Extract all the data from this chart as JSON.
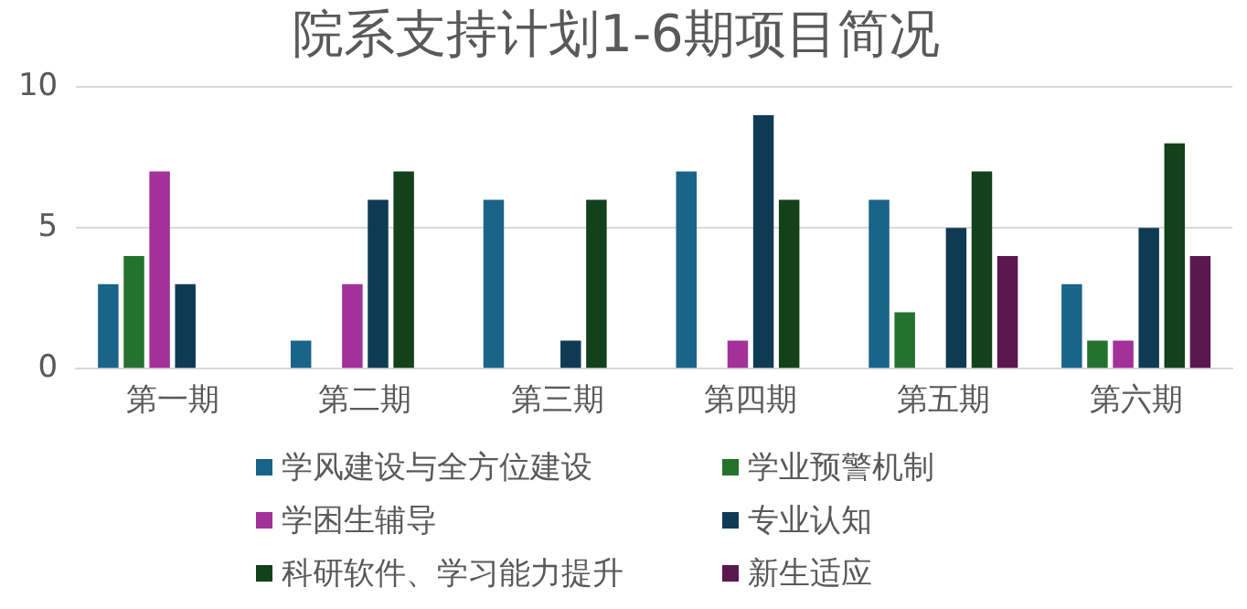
{
  "chart_data": {
    "type": "bar",
    "title": "院系支持计划1-6期项目简况",
    "categories": [
      "第一期",
      "第二期",
      "第三期",
      "第四期",
      "第五期",
      "第六期"
    ],
    "series": [
      {
        "name": "学风建设与全方位建设",
        "color": "#1a6389",
        "values": [
          3,
          1,
          6,
          7,
          6,
          3
        ]
      },
      {
        "name": "学业预警机制",
        "color": "#23722e",
        "values": [
          4,
          0,
          0,
          0,
          2,
          1
        ]
      },
      {
        "name": "学困生辅导",
        "color": "#a2319a",
        "values": [
          7,
          3,
          0,
          1,
          0,
          1
        ]
      },
      {
        "name": "专业认知",
        "color": "#0f3a53",
        "values": [
          3,
          6,
          1,
          9,
          5,
          5
        ]
      },
      {
        "name": "科研软件、学习能力提升",
        "color": "#134119",
        "values": [
          0,
          7,
          6,
          6,
          7,
          8
        ]
      },
      {
        "name": "新生适应",
        "color": "#5c1750",
        "values": [
          0,
          0,
          0,
          0,
          4,
          4
        ]
      }
    ],
    "ylim": [
      0,
      10
    ],
    "yticks": [
      0,
      5,
      10
    ],
    "grid": "y",
    "legend": "bottom"
  }
}
